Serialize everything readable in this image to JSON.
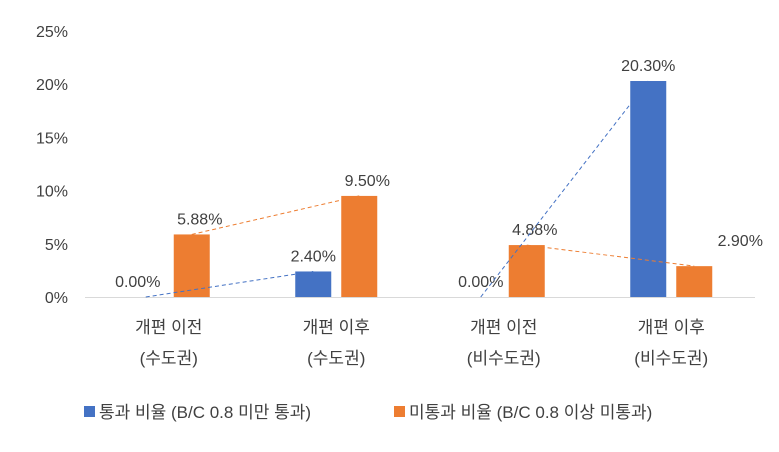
{
  "chart_data": {
    "type": "bar",
    "categories": [
      [
        "개편 이전",
        "(수도권)"
      ],
      [
        "개편 이후",
        "(수도권)"
      ],
      [
        "개편 이전",
        "(비수도권)"
      ],
      [
        "개편 이후",
        "(비수도권)"
      ]
    ],
    "series": [
      {
        "name": "통과 비율 (B/C 0.8 미만 통과)",
        "values": [
          0.0,
          2.4,
          0.0,
          20.3
        ],
        "labels": [
          "0.00%",
          "2.40%",
          "0.00%",
          "20.30%"
        ],
        "color": "#4472C4"
      },
      {
        "name": "미통과 비율 (B/C 0.8 이상 미통과)",
        "values": [
          5.88,
          9.5,
          4.88,
          2.9
        ],
        "labels": [
          "5.88%",
          "9.50%",
          "4.88%",
          "2.90%"
        ],
        "color": "#ED7D31"
      }
    ],
    "yticks": [
      "0%",
      "5%",
      "10%",
      "15%",
      "20%",
      "25%"
    ],
    "ylim": [
      0,
      25
    ],
    "grid": false,
    "legend": "bottom",
    "trendlines": "dashed, connecting 이전→이후 within each region for each series"
  }
}
